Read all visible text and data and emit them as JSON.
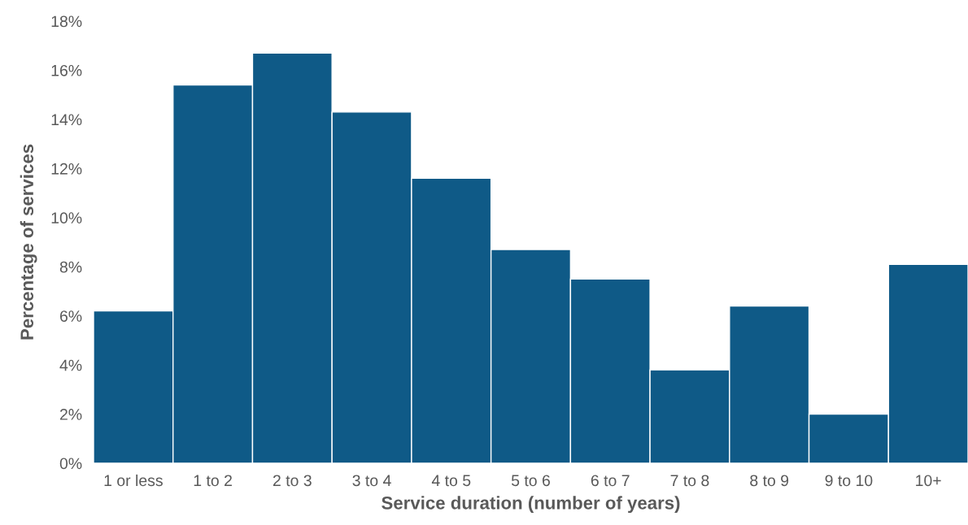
{
  "chart_data": {
    "type": "bar",
    "xlabel": "Service duration (number of years)",
    "ylabel": "Percentage of services",
    "categories": [
      "1 or less",
      "1 to 2",
      "2 to 3",
      "3 to 4",
      "4 to 5",
      "5 to 6",
      "6 to 7",
      "7 to 8",
      "8 to 9",
      "9 to 10",
      "10+"
    ],
    "values": [
      6.2,
      15.4,
      16.7,
      14.3,
      11.6,
      8.7,
      7.5,
      3.8,
      6.4,
      2.0,
      8.1
    ],
    "color": "#0f5a87",
    "ylim": [
      0,
      18
    ],
    "yticks": [
      {
        "value": 0,
        "label": "0%"
      },
      {
        "value": 2,
        "label": "2%"
      },
      {
        "value": 4,
        "label": "4%"
      },
      {
        "value": 6,
        "label": "6%"
      },
      {
        "value": 8,
        "label": "8%"
      },
      {
        "value": 10,
        "label": "10%"
      },
      {
        "value": 12,
        "label": "12%"
      },
      {
        "value": 14,
        "label": "14%"
      },
      {
        "value": 16,
        "label": "16%"
      },
      {
        "value": 18,
        "label": "18%"
      }
    ],
    "grid": false,
    "legend": false
  }
}
